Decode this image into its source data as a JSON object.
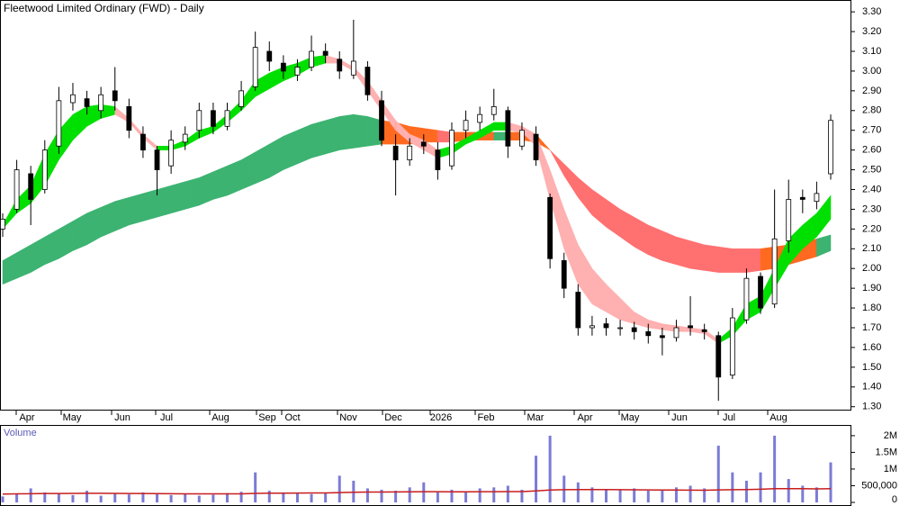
{
  "chart_data": [
    {
      "type": "candlestick",
      "title": "Fleetwood Limited Ordinary (FWD) - Daily",
      "months": [
        "Apr",
        "May",
        "Jun",
        "Jul",
        "Aug",
        "Sep",
        "Oct",
        "Nov",
        "Dec",
        "2026",
        "Feb",
        "Mar",
        "Apr",
        "May",
        "Jun",
        "Jul",
        "Aug"
      ],
      "open": [
        2.2,
        2.3,
        2.48,
        2.4,
        2.62,
        2.84,
        2.86,
        2.8,
        2.9,
        2.82,
        2.68,
        2.6,
        2.52,
        2.64,
        2.7,
        2.8,
        2.72,
        2.82,
        2.92,
        3.1,
        3.04,
        2.98,
        3.02,
        3.1,
        3.06,
        2.98,
        3.02,
        2.85,
        2.62,
        2.55,
        2.64,
        2.6,
        2.52,
        2.7,
        2.74,
        2.78,
        2.8,
        2.62,
        2.68,
        2.36,
        2.04,
        1.88,
        1.7,
        1.72,
        1.7,
        1.7,
        1.68,
        1.66,
        1.65,
        1.71,
        1.69,
        1.66,
        1.46,
        1.74,
        1.96,
        1.82,
        2.14,
        2.36,
        2.34,
        2.48
      ],
      "high": [
        2.28,
        2.55,
        2.52,
        2.65,
        2.92,
        2.94,
        2.9,
        2.92,
        3.02,
        2.86,
        2.72,
        2.62,
        2.7,
        2.72,
        2.84,
        2.84,
        2.84,
        2.95,
        3.2,
        3.15,
        3.08,
        3.06,
        3.18,
        3.14,
        3.1,
        3.26,
        3.05,
        2.9,
        2.68,
        2.66,
        2.68,
        2.64,
        2.74,
        2.8,
        2.82,
        2.91,
        2.82,
        2.74,
        2.72,
        2.38,
        2.08,
        1.92,
        1.76,
        1.75,
        1.74,
        1.73,
        1.72,
        1.7,
        1.74,
        1.86,
        1.72,
        1.68,
        1.8,
        2.0,
        1.98,
        2.4,
        2.45,
        2.4,
        2.44,
        2.78
      ],
      "low": [
        2.16,
        2.28,
        2.22,
        2.38,
        2.58,
        2.8,
        2.78,
        2.76,
        2.8,
        2.66,
        2.56,
        2.37,
        2.48,
        2.6,
        2.66,
        2.68,
        2.7,
        2.8,
        2.9,
        3.0,
        2.96,
        2.95,
        3.0,
        3.04,
        2.96,
        2.96,
        2.85,
        2.62,
        2.37,
        2.52,
        2.58,
        2.45,
        2.5,
        2.66,
        2.7,
        2.75,
        2.56,
        2.6,
        2.52,
        2.0,
        1.85,
        1.66,
        1.66,
        1.66,
        1.66,
        1.64,
        1.62,
        1.56,
        1.63,
        1.66,
        1.64,
        1.33,
        1.44,
        1.72,
        1.77,
        1.8,
        2.08,
        2.28,
        2.3,
        2.45
      ],
      "close": [
        2.25,
        2.5,
        2.35,
        2.6,
        2.85,
        2.88,
        2.82,
        2.88,
        2.85,
        2.7,
        2.6,
        2.5,
        2.65,
        2.68,
        2.8,
        2.72,
        2.8,
        2.9,
        3.12,
        3.05,
        3.0,
        3.02,
        3.1,
        3.08,
        3.0,
        3.05,
        2.88,
        2.65,
        2.55,
        2.62,
        2.62,
        2.5,
        2.7,
        2.75,
        2.78,
        2.82,
        2.62,
        2.7,
        2.55,
        2.05,
        1.9,
        1.7,
        1.71,
        1.7,
        1.7,
        1.68,
        1.66,
        1.65,
        1.7,
        1.7,
        1.68,
        1.45,
        1.75,
        1.95,
        1.8,
        2.15,
        2.35,
        2.35,
        2.38,
        2.75
      ],
      "fast_band": {
        "upper": [
          2.22,
          2.35,
          2.42,
          2.58,
          2.7,
          2.78,
          2.82,
          2.83,
          2.82,
          2.76,
          2.68,
          2.62,
          2.62,
          2.65,
          2.7,
          2.72,
          2.78,
          2.85,
          2.95,
          2.99,
          3.02,
          3.04,
          3.07,
          3.08,
          3.06,
          3.02,
          2.95,
          2.85,
          2.75,
          2.68,
          2.65,
          2.6,
          2.62,
          2.66,
          2.7,
          2.74,
          2.74,
          2.72,
          2.68,
          2.5,
          2.3,
          2.12,
          2.0,
          1.92,
          1.85,
          1.78,
          1.74,
          1.72,
          1.71,
          1.7,
          1.69,
          1.64,
          1.7,
          1.82,
          1.86,
          2.0,
          2.15,
          2.22,
          2.28,
          2.37
        ],
        "lower": [
          2.2,
          2.28,
          2.33,
          2.42,
          2.55,
          2.65,
          2.72,
          2.76,
          2.78,
          2.74,
          2.66,
          2.6,
          2.6,
          2.62,
          2.66,
          2.69,
          2.74,
          2.8,
          2.87,
          2.91,
          2.95,
          2.98,
          3.02,
          3.04,
          3.04,
          3.0,
          2.9,
          2.8,
          2.7,
          2.64,
          2.6,
          2.56,
          2.58,
          2.63,
          2.66,
          2.7,
          2.7,
          2.69,
          2.62,
          2.35,
          2.1,
          1.92,
          1.82,
          1.78,
          1.74,
          1.72,
          1.7,
          1.69,
          1.68,
          1.68,
          1.67,
          1.62,
          1.66,
          1.74,
          1.78,
          1.9,
          2.02,
          2.1,
          2.16,
          2.25
        ]
      },
      "slow_band": {
        "upper": [
          2.04,
          2.08,
          2.12,
          2.16,
          2.2,
          2.24,
          2.28,
          2.31,
          2.34,
          2.36,
          2.38,
          2.4,
          2.42,
          2.44,
          2.46,
          2.49,
          2.52,
          2.55,
          2.59,
          2.63,
          2.67,
          2.7,
          2.73,
          2.75,
          2.77,
          2.78,
          2.77,
          2.75,
          2.74,
          2.72,
          2.71,
          2.7,
          2.69,
          2.69,
          2.69,
          2.69,
          2.69,
          2.69,
          2.68,
          2.6,
          2.53,
          2.46,
          2.4,
          2.35,
          2.3,
          2.26,
          2.22,
          2.19,
          2.16,
          2.14,
          2.12,
          2.11,
          2.1,
          2.1,
          2.1,
          2.11,
          2.12,
          2.13,
          2.15,
          2.17
        ],
        "lower": [
          1.92,
          1.95,
          1.98,
          2.02,
          2.05,
          2.09,
          2.12,
          2.16,
          2.19,
          2.22,
          2.24,
          2.26,
          2.28,
          2.3,
          2.32,
          2.35,
          2.37,
          2.4,
          2.43,
          2.46,
          2.5,
          2.53,
          2.56,
          2.58,
          2.6,
          2.61,
          2.62,
          2.63,
          2.63,
          2.63,
          2.64,
          2.64,
          2.64,
          2.65,
          2.65,
          2.65,
          2.65,
          2.65,
          2.64,
          2.6,
          2.47,
          2.36,
          2.27,
          2.21,
          2.16,
          2.11,
          2.07,
          2.04,
          2.02,
          2.0,
          1.99,
          1.98,
          1.98,
          1.98,
          1.99,
          2.0,
          2.02,
          2.04,
          2.06,
          2.09
        ]
      },
      "colors": {
        "candle": "#000000",
        "rising": "#00e000",
        "falling": "#ffb0b0",
        "bull": "#3cb371",
        "bear": "#ff7070",
        "mixed": "#ff6a20"
      },
      "ylim": [
        1.285,
        3.36
      ],
      "yticks": [
        {
          "value": 1.3,
          "label": "1.30"
        },
        {
          "value": 1.4,
          "label": "1.40"
        },
        {
          "value": 1.5,
          "label": "1.50"
        },
        {
          "value": 1.6,
          "label": "1.60"
        },
        {
          "value": 1.7,
          "label": "1.70"
        },
        {
          "value": 1.8,
          "label": "1.80"
        },
        {
          "value": 1.9,
          "label": "1.90"
        },
        {
          "value": 2.0,
          "label": "2.00"
        },
        {
          "value": 2.1,
          "label": "2.10"
        },
        {
          "value": 2.2,
          "label": "2.20"
        },
        {
          "value": 2.3,
          "label": "2.30"
        },
        {
          "value": 2.4,
          "label": "2.40"
        },
        {
          "value": 2.5,
          "label": "2.50"
        },
        {
          "value": 2.6,
          "label": "2.60"
        },
        {
          "value": 2.7,
          "label": "2.70"
        },
        {
          "value": 2.8,
          "label": "2.80"
        },
        {
          "value": 2.9,
          "label": "2.90"
        },
        {
          "value": 3.0,
          "label": "3.00"
        },
        {
          "value": 3.1,
          "label": "3.10"
        },
        {
          "value": 3.2,
          "label": "3.20"
        },
        {
          "value": 3.3,
          "label": "3.30"
        }
      ]
    },
    {
      "type": "bar",
      "title": "Volume",
      "values": [
        180000,
        250000,
        420000,
        300000,
        260000,
        220000,
        350000,
        200000,
        280000,
        240000,
        300000,
        260000,
        220000,
        250000,
        200000,
        230000,
        280000,
        320000,
        900000,
        350000,
        300000,
        280000,
        250000,
        270000,
        800000,
        650000,
        420000,
        380000,
        350000,
        450000,
        600000,
        300000,
        380000,
        320000,
        420000,
        450000,
        500000,
        380000,
        1400000,
        2000000,
        800000,
        600000,
        450000,
        400000,
        380000,
        420000,
        350000,
        350000,
        450000,
        500000,
        420000,
        1700000,
        900000,
        650000,
        900000,
        2000000,
        700000,
        500000,
        450000,
        1200000
      ],
      "average": [
        250000,
        255000,
        260000,
        265000,
        268000,
        270000,
        272000,
        272000,
        270000,
        268000,
        265000,
        262000,
        260000,
        258000,
        256000,
        255000,
        256000,
        258000,
        270000,
        275000,
        278000,
        280000,
        282000,
        285000,
        295000,
        305000,
        310000,
        312000,
        314000,
        318000,
        322000,
        320000,
        318000,
        318000,
        320000,
        322000,
        325000,
        325000,
        345000,
        370000,
        380000,
        385000,
        385000,
        383000,
        380000,
        378000,
        375000,
        372000,
        370000,
        368000,
        365000,
        375000,
        380000,
        385000,
        395000,
        410000,
        412000,
        410000,
        405000,
        410000
      ],
      "color": "#7b7bd6",
      "average_color": "#c81e1e",
      "ylim": [
        0,
        2240000
      ],
      "yticks": [
        0,
        {
          "value": 500000,
          "label": "500,000"
        },
        {
          "value": 1000000,
          "label": "1M"
        },
        {
          "value": 1500000,
          "label": "1.5M"
        },
        {
          "value": 2000000,
          "label": "2M"
        }
      ]
    }
  ]
}
